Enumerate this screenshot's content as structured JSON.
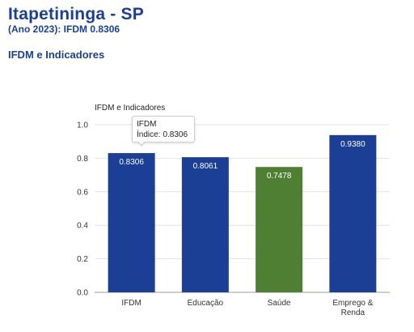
{
  "header": {
    "title": "Itapetininga - SP",
    "subtitle": "(Ano 2023): IFDM 0.8306",
    "section_heading": "IFDM e Indicadores"
  },
  "tooltip": {
    "title": "IFDM",
    "label": "Índice:",
    "value": "0.8306"
  },
  "chart_data": {
    "type": "bar",
    "title": "IFDM e Indicadores",
    "xlabel": "",
    "ylabel": "",
    "categories": [
      "IFDM",
      "Educação",
      "Saúde",
      "Emprego & Renda"
    ],
    "category_lines": [
      [
        "IFDM"
      ],
      [
        "Educação"
      ],
      [
        "Saúde"
      ],
      [
        "Emprego &",
        "Renda"
      ]
    ],
    "values": [
      0.8306,
      0.8061,
      0.7478,
      0.938
    ],
    "value_labels": [
      "0.8306",
      "0.8061",
      "0.7478",
      "0.9380"
    ],
    "colors": [
      "#1b3f95",
      "#1b3f95",
      "#4f7f33",
      "#1b3f95"
    ],
    "ylim": [
      0,
      1.0
    ],
    "yticks": [
      0.0,
      0.2,
      0.4,
      0.6,
      0.8,
      1.0
    ],
    "ytick_labels": [
      "0.0",
      "0.2",
      "0.4",
      "0.6",
      "0.8",
      "1.0"
    ],
    "grid": true,
    "legend": "none"
  }
}
